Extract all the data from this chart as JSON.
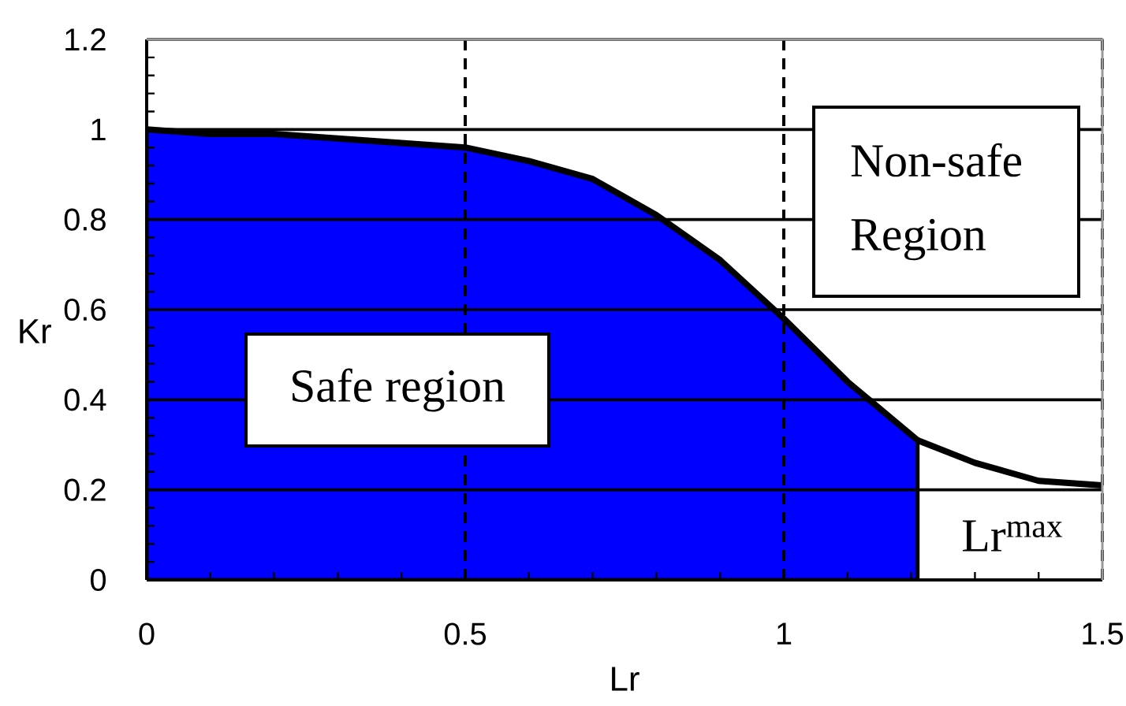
{
  "chart_data": {
    "type": "area",
    "xlabel": "Lr",
    "ylabel": "Kr",
    "annotations": [
      "Safe region",
      "Non-safe Region",
      "Lr$^{max}$"
    ],
    "series": [
      {
        "color": "#0000ff",
        "x": [
          0,
          0.1,
          0.2,
          0.3,
          0.4,
          0.5,
          0.6,
          0.7,
          0.8,
          0.9,
          1,
          1.1,
          1.21
        ],
        "values": [
          1,
          0.99,
          0.99,
          0.98,
          0.97,
          0.96,
          0.93,
          0.89,
          0.81,
          0.71,
          0.58,
          0.44,
          0.31
        ]
      },
      {
        "type": "line",
        "color": "#000000",
        "x": [
          0,
          0.1,
          0.2,
          0.3,
          0.4,
          0.5,
          0.6,
          0.7,
          0.8,
          0.9,
          1,
          1.1,
          1.21,
          1.3,
          1.4,
          1.5
        ],
        "values": [
          1,
          0.99,
          0.99,
          0.98,
          0.97,
          0.96,
          0.93,
          0.89,
          0.81,
          0.71,
          0.58,
          0.44,
          0.31,
          0.26,
          0.22,
          0.21
        ]
      }
    ],
    "xlim": [
      0,
      1.5
    ],
    "ylim": [
      0,
      1.2
    ],
    "xticks": [
      0,
      0.5,
      1,
      1.5
    ],
    "yticks": [
      0,
      0.2,
      0.4,
      0.6,
      0.8,
      1,
      1.2
    ],
    "grid": true
  }
}
